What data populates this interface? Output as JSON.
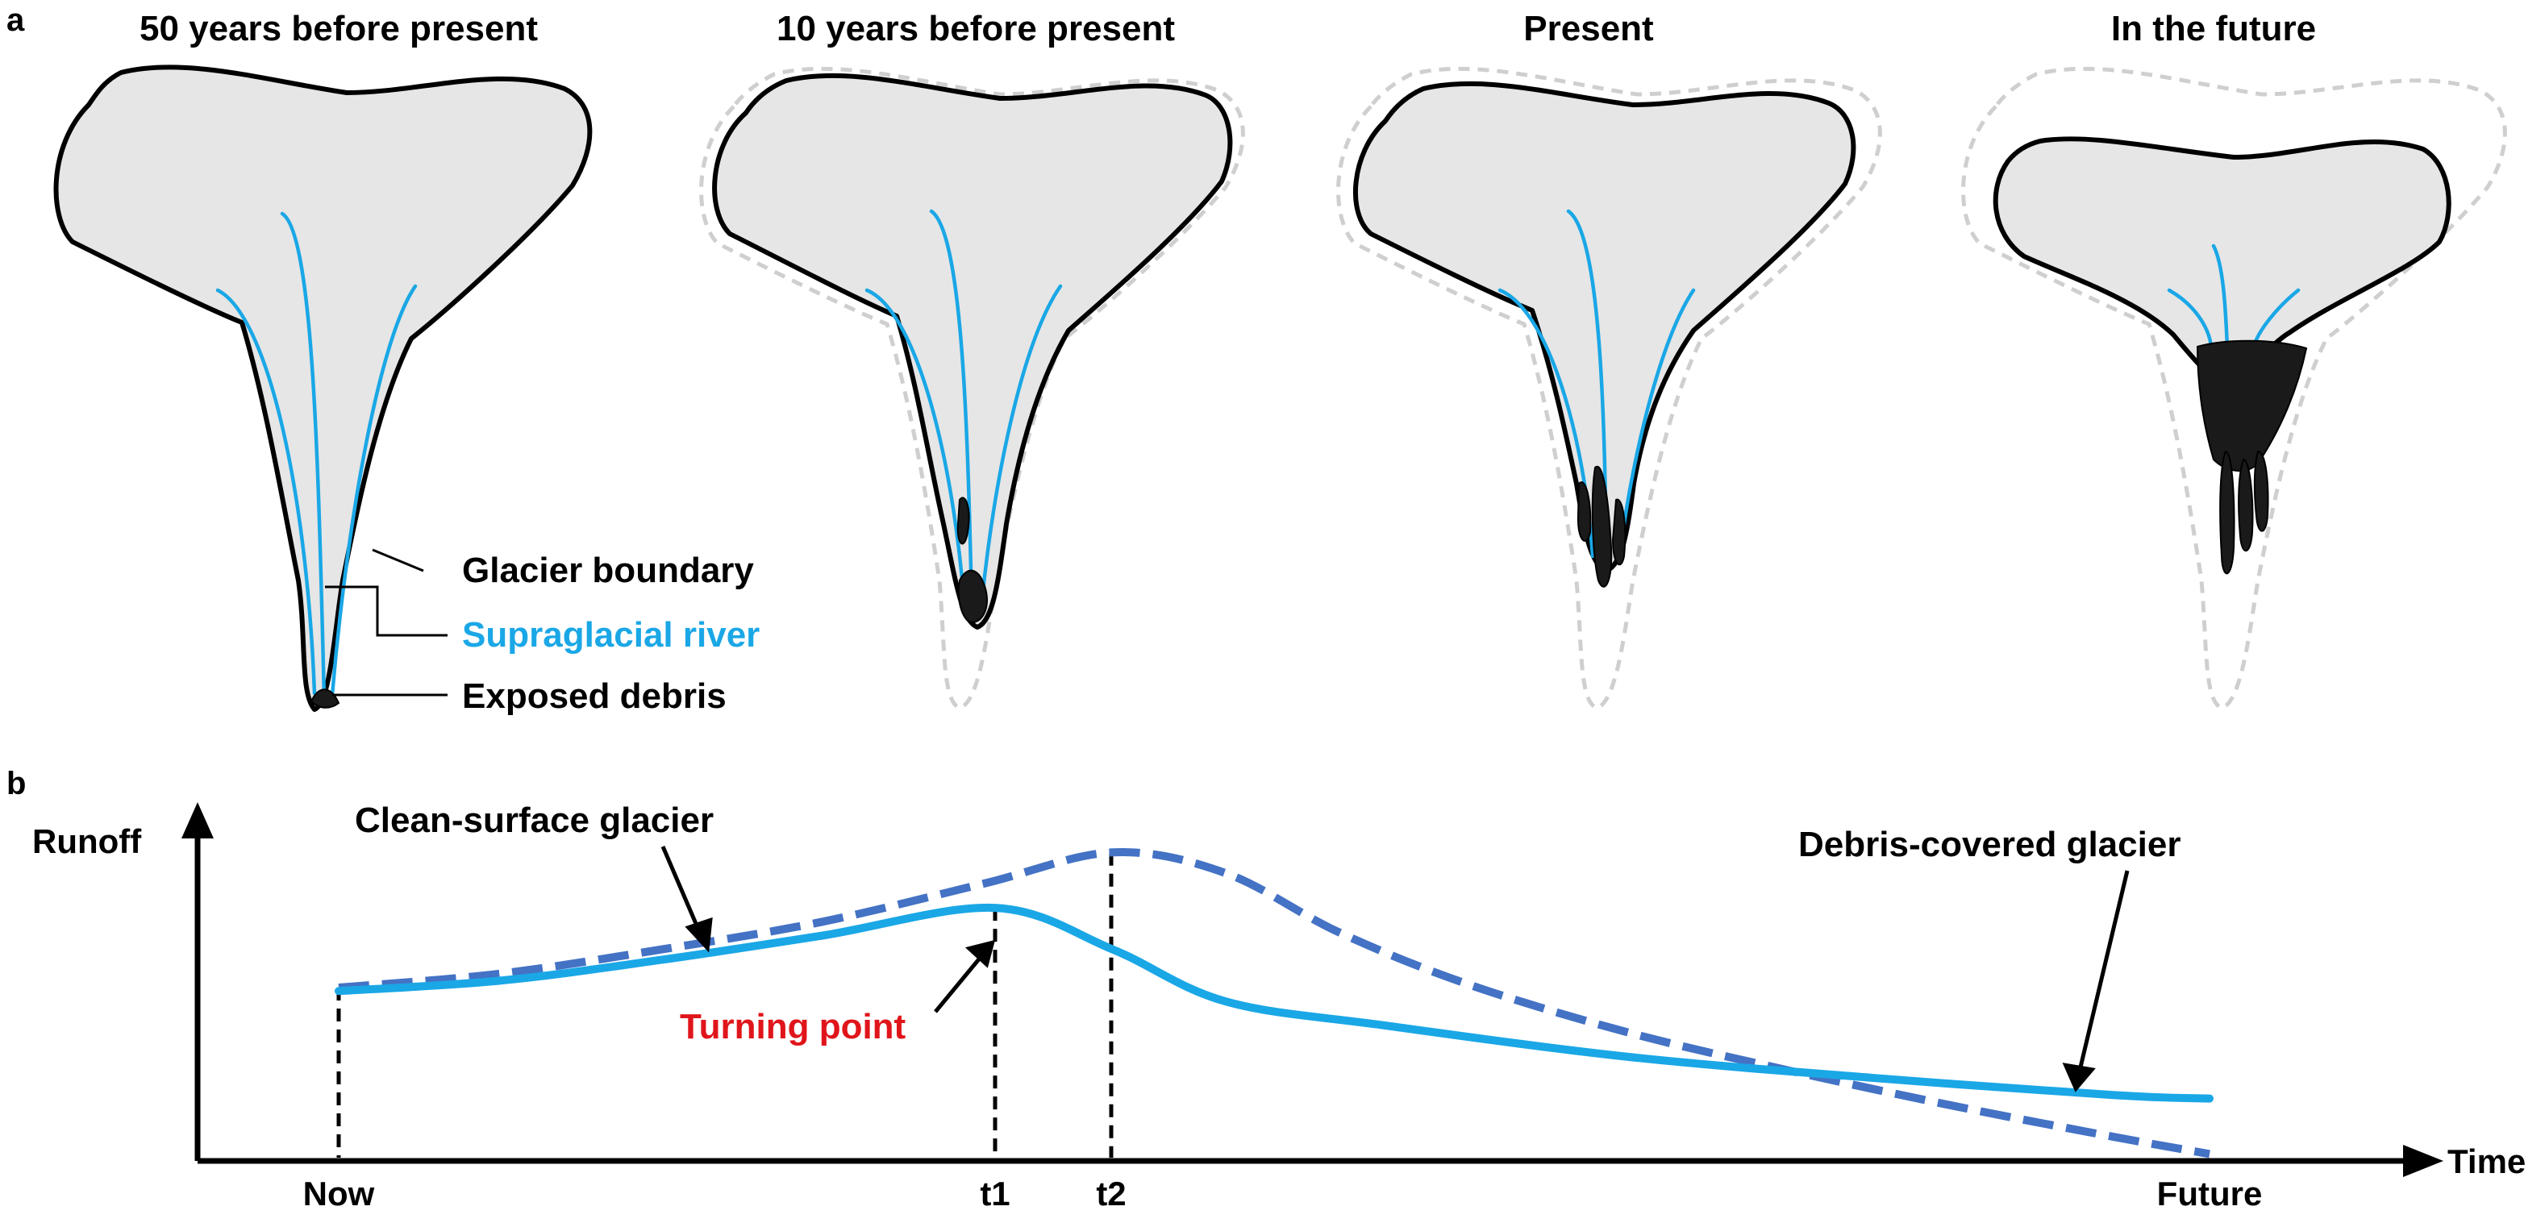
{
  "panel_a": {
    "letter": "a",
    "stages": [
      {
        "title": "50 years before present"
      },
      {
        "title": "10 years before present"
      },
      {
        "title": "Present"
      },
      {
        "title": "In the future"
      }
    ],
    "legend": {
      "glacier_boundary": "Glacier boundary",
      "supraglacial_river": "Supraglacial river",
      "exposed_debris": "Exposed debris"
    }
  },
  "panel_b": {
    "letter": "b",
    "annotations": {
      "clean_surface": "Clean-surface glacier",
      "debris_covered": "Debris-covered glacier",
      "turning_point": "Turning point"
    }
  },
  "chart_data": {
    "type": "line",
    "title": "",
    "xlabel": "Time",
    "ylabel": "Runoff",
    "x_ticks": [
      "Now",
      "t1",
      "t2",
      "Future"
    ],
    "x_tick_values": [
      0,
      4.07,
      4.79,
      11.6
    ],
    "xlim": [
      -0.95,
      13.3
    ],
    "ylim": [
      0,
      10
    ],
    "series": [
      {
        "name": "Clean-surface glacier",
        "style": "dashed",
        "color": "#4472c4",
        "x": [
          0,
          1,
          2,
          3,
          4,
          4.8,
          5.5,
          6.2,
          7,
          8,
          9,
          10,
          11,
          11.6
        ],
        "y": [
          5.0,
          5.4,
          6.1,
          6.9,
          8.0,
          8.9,
          8.3,
          6.6,
          5.1,
          3.7,
          2.6,
          1.6,
          0.7,
          0.2
        ]
      },
      {
        "name": "Debris-covered glacier",
        "style": "solid",
        "color": "#1aa7e6",
        "x": [
          0,
          1,
          2,
          3,
          4.07,
          4.8,
          5.5,
          6.5,
          8,
          9.5,
          11,
          11.6
        ],
        "y": [
          4.9,
          5.2,
          5.8,
          6.5,
          7.3,
          6.1,
          4.6,
          3.9,
          3.0,
          2.4,
          1.9,
          1.8
        ]
      }
    ],
    "colors": {
      "axis": "#000000",
      "turning_point": "#e0151b"
    }
  }
}
